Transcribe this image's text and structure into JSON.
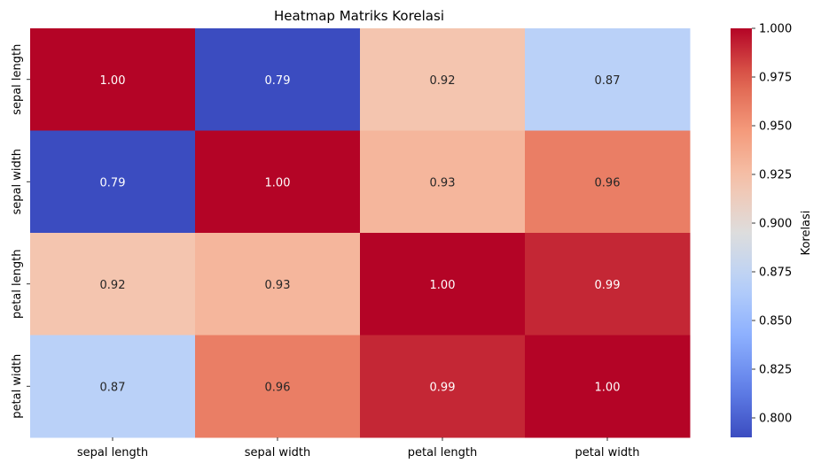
{
  "chart_data": {
    "type": "heatmap",
    "title": "Heatmap Matriks Korelasi",
    "x_categories": [
      "sepal length",
      "sepal width",
      "petal length",
      "petal width"
    ],
    "y_categories": [
      "sepal length",
      "sepal width",
      "petal length",
      "petal width"
    ],
    "values": [
      [
        1.0,
        0.79,
        0.92,
        0.87
      ],
      [
        0.79,
        1.0,
        0.93,
        0.96
      ],
      [
        0.92,
        0.93,
        1.0,
        0.99
      ],
      [
        0.87,
        0.96,
        0.99,
        1.0
      ]
    ],
    "value_format": "0.00",
    "colormap": "coolwarm",
    "colorbar": {
      "label": "Korelasi",
      "range": [
        0.79,
        1.0
      ],
      "ticks": [
        0.8,
        0.825,
        0.85,
        0.875,
        0.9,
        0.925,
        0.95,
        0.975,
        1.0
      ],
      "tick_labels": [
        "0.800",
        "0.825",
        "0.850",
        "0.875",
        "0.900",
        "0.925",
        "0.950",
        "0.975",
        "1.000"
      ]
    },
    "grid": false,
    "legend": "colorbar-right"
  }
}
